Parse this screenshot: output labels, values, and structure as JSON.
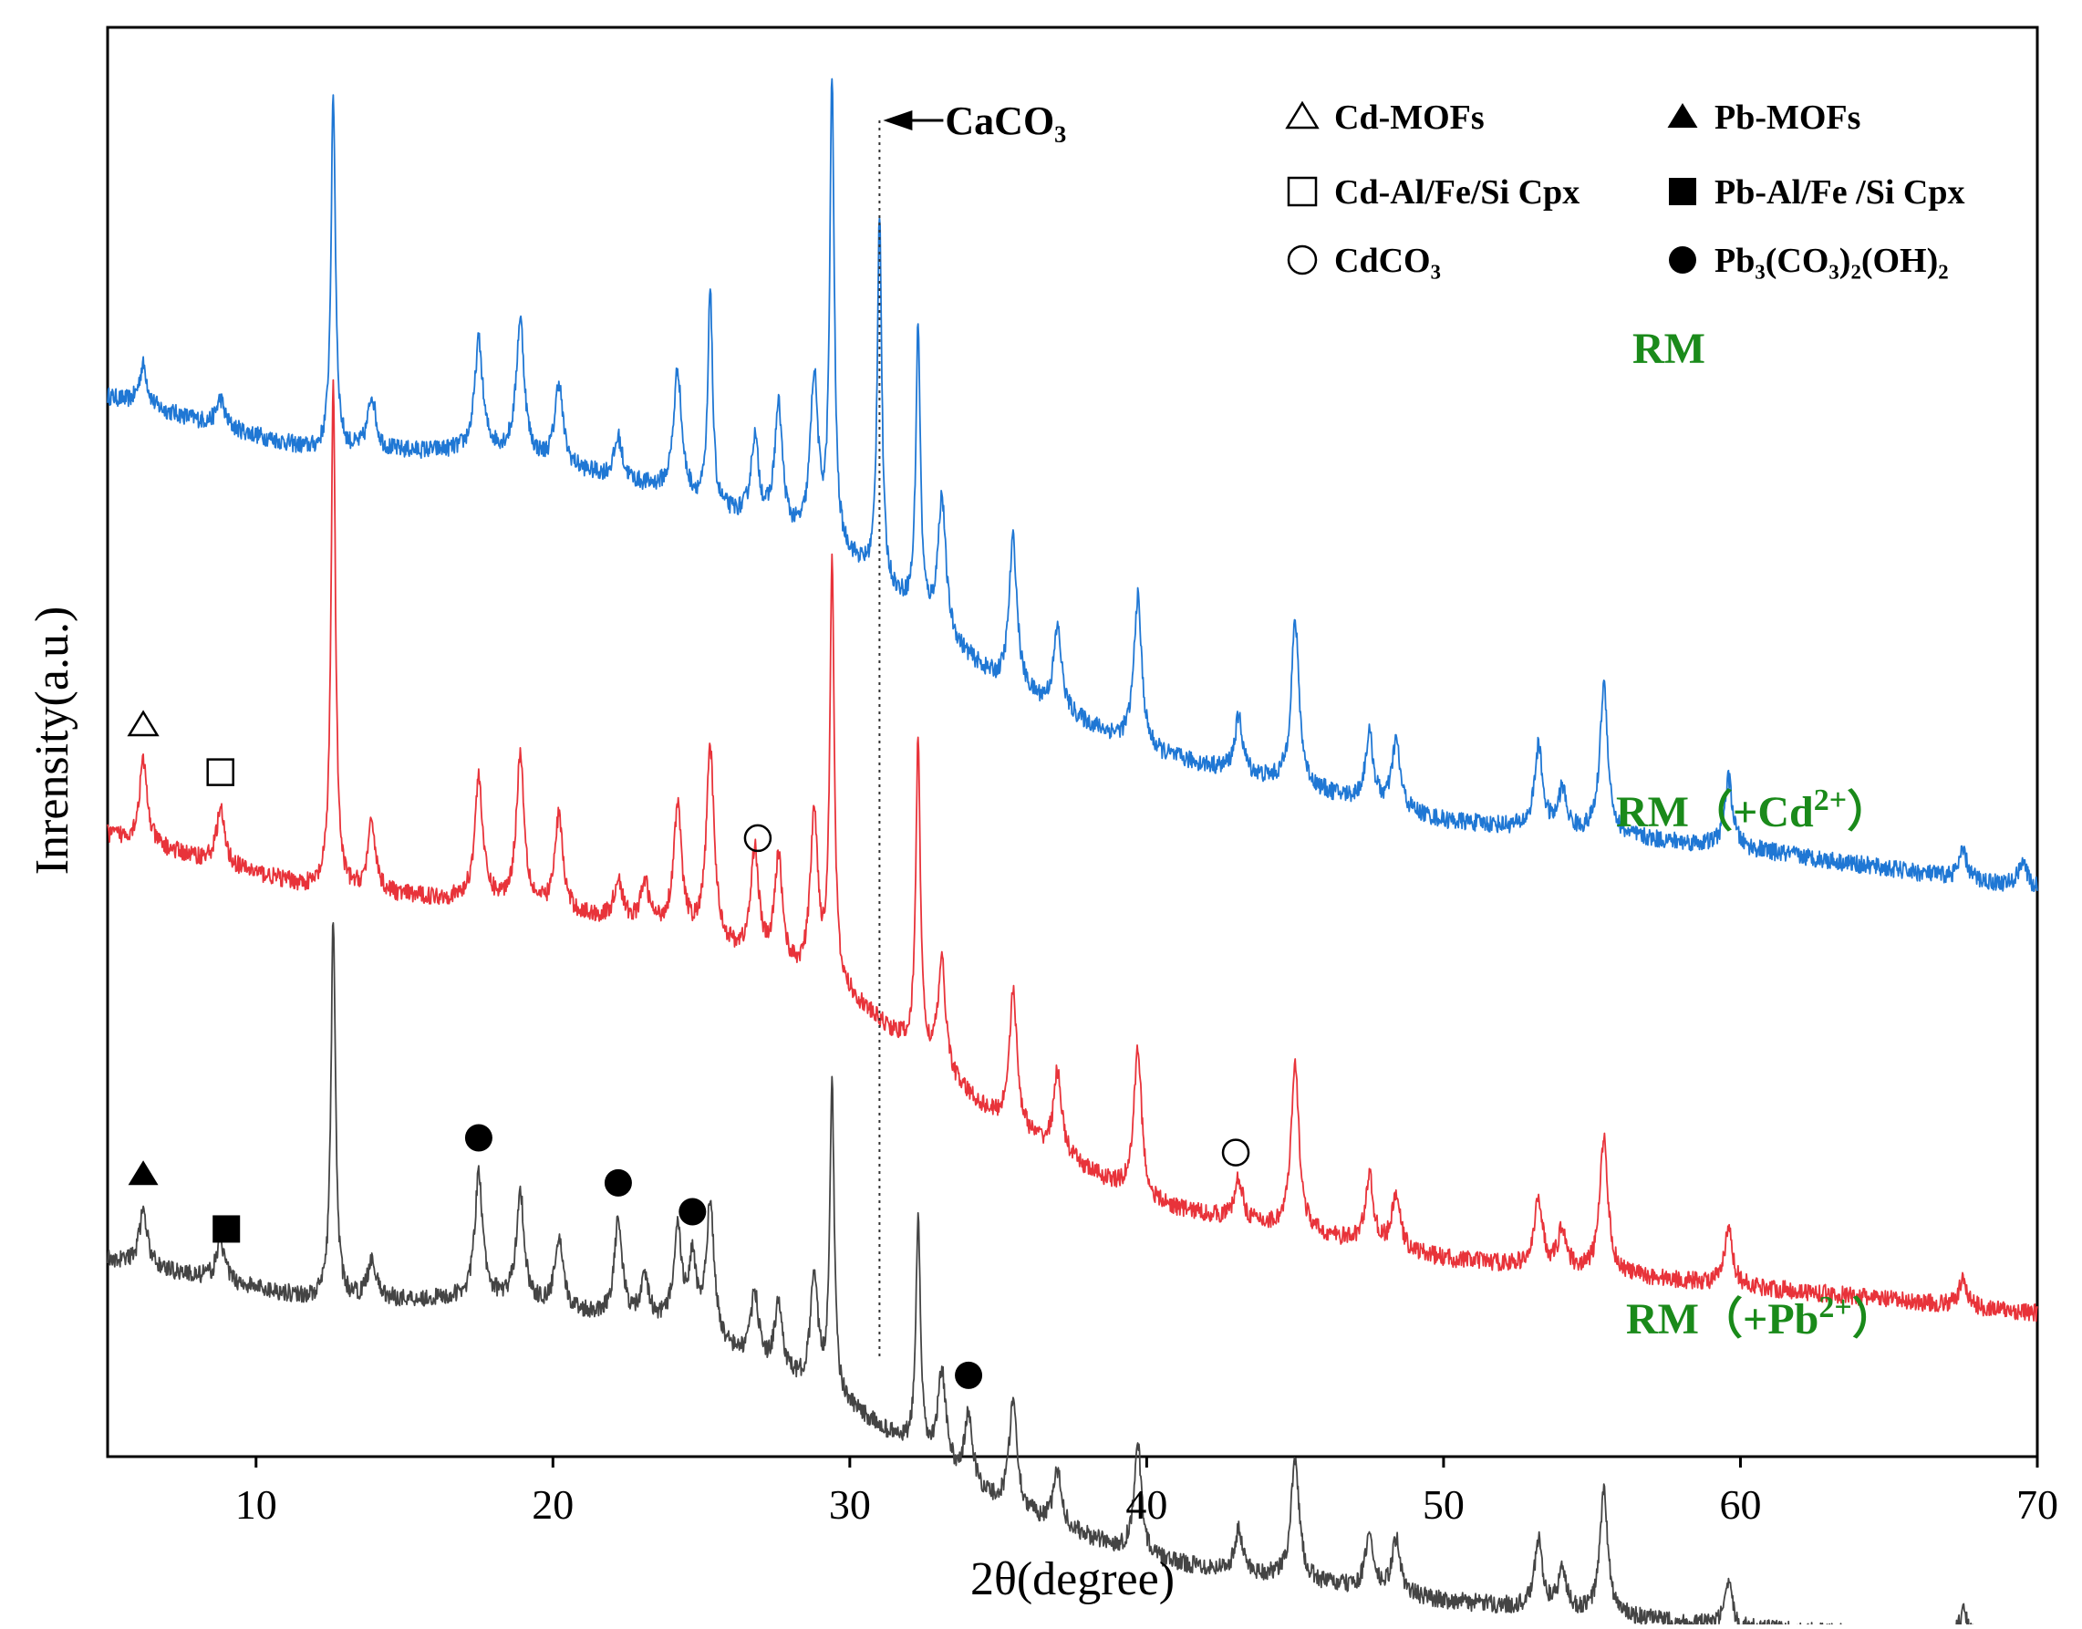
{
  "chart_data": {
    "type": "line",
    "title": "",
    "xlabel": "2θ(degree)",
    "ylabel": "Inrensity(a.u.)",
    "xlim": [
      5,
      70
    ],
    "xticks": [
      10,
      20,
      30,
      40,
      50,
      60,
      70
    ],
    "grid": false,
    "legend": {
      "placement": "top-right",
      "entries": [
        {
          "key": "cd_mofs",
          "symbol": "open-triangle",
          "label": "Cd-MOFs"
        },
        {
          "key": "pb_mofs",
          "symbol": "filled-triangle",
          "label": "Pb-MOFs"
        },
        {
          "key": "cd_cpx",
          "symbol": "open-square",
          "label": "Cd-Al/Fe/Si Cpx"
        },
        {
          "key": "pb_cpx",
          "symbol": "filled-square",
          "label": "Pb-Al/Fe /Si Cpx"
        },
        {
          "key": "cdco3",
          "symbol": "open-circle",
          "label": "CdCO₃"
        },
        {
          "key": "pb_hydrocerussite",
          "symbol": "filled-circle",
          "label": "Pb₃(CO₃)₂(OH)₂"
        }
      ]
    },
    "reference_line": {
      "x": 31.0,
      "label": "CaCO₃"
    },
    "series": [
      {
        "name": "RM",
        "label": "RM",
        "color": "#1f77d4",
        "label_color": "#1a8a1a",
        "baseline": [
          [
            5,
            73
          ],
          [
            12,
            69
          ],
          [
            18,
            69
          ],
          [
            24,
            66
          ],
          [
            30,
            61
          ],
          [
            35,
            52
          ],
          [
            40,
            47
          ],
          [
            50,
            42
          ],
          [
            60,
            40
          ],
          [
            70,
            37
          ]
        ],
        "peaks": [
          [
            6.2,
            3
          ],
          [
            8.8,
            2
          ],
          [
            12.6,
            26
          ],
          [
            13.9,
            4
          ],
          [
            17.5,
            8
          ],
          [
            18.9,
            10
          ],
          [
            20.2,
            6
          ],
          [
            22.2,
            3
          ],
          [
            24.2,
            9
          ],
          [
            25.3,
            16
          ],
          [
            26.8,
            6
          ],
          [
            27.6,
            9
          ],
          [
            28.8,
            12
          ],
          [
            29.4,
            34
          ],
          [
            31.0,
            27
          ],
          [
            32.3,
            21
          ],
          [
            33.1,
            10
          ],
          [
            35.5,
            11
          ],
          [
            37.0,
            6
          ],
          [
            39.7,
            11
          ],
          [
            43.1,
            4
          ],
          [
            45.0,
            12
          ],
          [
            47.5,
            5
          ],
          [
            48.4,
            5
          ],
          [
            53.2,
            6
          ],
          [
            54.0,
            3
          ],
          [
            55.4,
            11
          ],
          [
            59.6,
            5
          ],
          [
            67.5,
            2
          ],
          [
            69.5,
            2
          ]
        ]
      },
      {
        "name": "RM (+Cd2+)",
        "label": "RM（+Cd",
        "label_sup": "2+",
        "label_end": "）",
        "color": "#e8333a",
        "label_color": "#1a8a1a",
        "baseline": [
          [
            5,
            41
          ],
          [
            12,
            37
          ],
          [
            18,
            36
          ],
          [
            24,
            34
          ],
          [
            30,
            29
          ],
          [
            35,
            20
          ],
          [
            40,
            14
          ],
          [
            50,
            10
          ],
          [
            60,
            8
          ],
          [
            70,
            6
          ]
        ],
        "peaks": [
          [
            6.2,
            6
          ],
          [
            8.8,
            4
          ],
          [
            12.6,
            37
          ],
          [
            13.9,
            5
          ],
          [
            17.5,
            9
          ],
          [
            18.9,
            11
          ],
          [
            20.2,
            7
          ],
          [
            22.2,
            3
          ],
          [
            23.1,
            3
          ],
          [
            24.2,
            9
          ],
          [
            25.3,
            14
          ],
          [
            26.8,
            8
          ],
          [
            27.6,
            8
          ],
          [
            28.8,
            12
          ],
          [
            29.4,
            31
          ],
          [
            32.3,
            23
          ],
          [
            33.1,
            8
          ],
          [
            35.5,
            10
          ],
          [
            37.0,
            6
          ],
          [
            39.7,
            11
          ],
          [
            43.1,
            3
          ],
          [
            45.0,
            12
          ],
          [
            47.5,
            5
          ],
          [
            48.4,
            4
          ],
          [
            53.2,
            5
          ],
          [
            54.0,
            3
          ],
          [
            55.4,
            10
          ],
          [
            59.6,
            4
          ],
          [
            67.5,
            2
          ]
        ]
      },
      {
        "name": "RM (+Pb2+)",
        "label": "RM（+Pb",
        "label_sup": "2+",
        "label_end": "）",
        "color": "#444444",
        "label_color": "#1a8a1a",
        "baseline": [
          [
            5,
            10
          ],
          [
            12,
            7
          ],
          [
            18,
            7
          ],
          [
            24,
            5
          ],
          [
            30,
            -1
          ],
          [
            35,
            -8
          ],
          [
            40,
            -12
          ],
          [
            50,
            -15
          ],
          [
            60,
            -17
          ],
          [
            70,
            -18
          ]
        ],
        "peaks": [
          [
            6.2,
            4
          ],
          [
            8.8,
            3
          ],
          [
            12.6,
            28
          ],
          [
            13.9,
            3
          ],
          [
            17.5,
            9
          ],
          [
            18.9,
            8
          ],
          [
            20.2,
            5
          ],
          [
            22.2,
            7
          ],
          [
            23.1,
            3
          ],
          [
            24.2,
            7
          ],
          [
            24.7,
            5
          ],
          [
            25.3,
            10
          ],
          [
            26.8,
            5
          ],
          [
            27.6,
            5
          ],
          [
            28.8,
            8
          ],
          [
            29.4,
            23
          ],
          [
            32.3,
            17
          ],
          [
            33.1,
            7
          ],
          [
            34.0,
            5
          ],
          [
            35.5,
            8
          ],
          [
            37.0,
            4
          ],
          [
            39.7,
            8
          ],
          [
            43.1,
            3
          ],
          [
            45.0,
            9
          ],
          [
            47.5,
            4
          ],
          [
            48.4,
            4
          ],
          [
            53.2,
            5
          ],
          [
            54.0,
            3
          ],
          [
            55.4,
            9
          ],
          [
            59.6,
            3
          ],
          [
            67.5,
            2
          ]
        ]
      }
    ],
    "markers": [
      {
        "symbol": "open-triangle",
        "x": 6.2,
        "series": "RM (+Cd2+)"
      },
      {
        "symbol": "open-square",
        "x": 8.8,
        "series": "RM (+Cd2+)"
      },
      {
        "symbol": "open-circle",
        "x": 26.9,
        "series": "RM (+Cd2+)"
      },
      {
        "symbol": "open-circle",
        "x": 43.0,
        "series": "RM (+Cd2+)"
      },
      {
        "symbol": "filled-triangle",
        "x": 6.2,
        "series": "RM (+Pb2+)"
      },
      {
        "symbol": "filled-square",
        "x": 9.0,
        "series": "RM (+Pb2+)"
      },
      {
        "symbol": "filled-circle",
        "x": 17.5,
        "series": "RM (+Pb2+)"
      },
      {
        "symbol": "filled-circle",
        "x": 22.2,
        "series": "RM (+Pb2+)"
      },
      {
        "symbol": "filled-circle",
        "x": 24.7,
        "series": "RM (+Pb2+)"
      },
      {
        "symbol": "filled-circle",
        "x": 34.0,
        "series": "RM (+Pb2+)"
      }
    ]
  }
}
